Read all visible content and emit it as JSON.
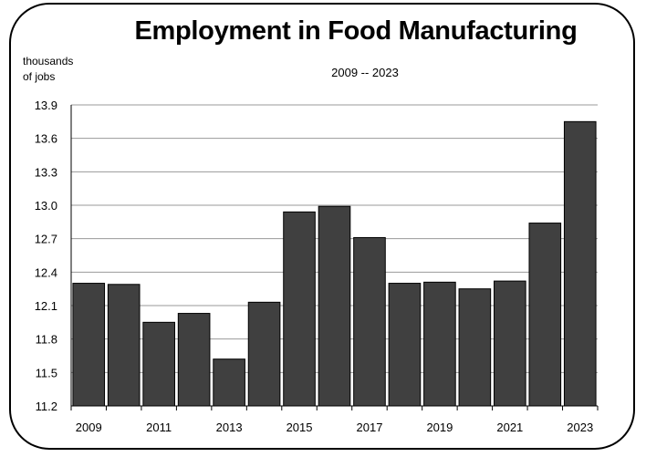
{
  "chart_data": {
    "type": "bar",
    "title": "Employment in Food Manufacturing",
    "subtitle": "2009 -- 2023",
    "ylabel_lines": [
      "thousands",
      "of jobs"
    ],
    "xlabel": "",
    "categories": [
      "2009",
      "2010",
      "2011",
      "2012",
      "2013",
      "2014",
      "2015",
      "2016",
      "2017",
      "2018",
      "2019",
      "2020",
      "2021",
      "2022",
      "2023"
    ],
    "x_tick_labels": [
      "2009",
      "2011",
      "2013",
      "2015",
      "2017",
      "2019",
      "2021",
      "2023"
    ],
    "values": [
      12.3,
      12.29,
      11.95,
      12.03,
      11.62,
      12.13,
      12.94,
      12.99,
      12.71,
      12.3,
      12.31,
      12.25,
      12.32,
      12.84,
      13.75
    ],
    "ylim": [
      11.2,
      13.9
    ],
    "y_ticks": [
      "11.2",
      "11.5",
      "11.8",
      "12.1",
      "12.4",
      "12.7",
      "13.0",
      "13.3",
      "13.6",
      "13.9"
    ],
    "grid": true,
    "bar_color": "#404040"
  }
}
